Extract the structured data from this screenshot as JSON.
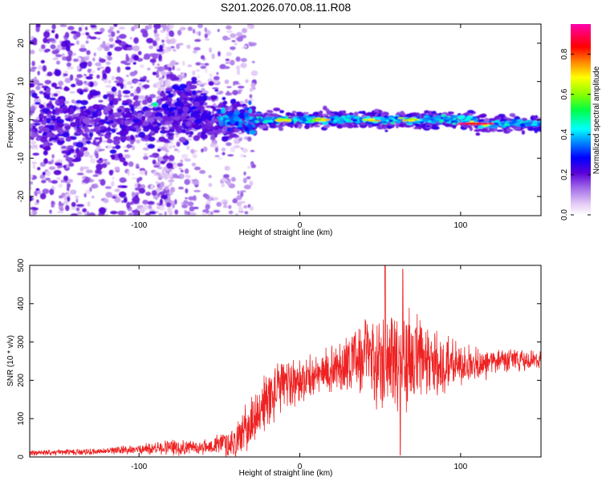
{
  "title": "S201.2026.070.08.11.R08",
  "colors": {
    "snr_line": "#ee2222",
    "frame": "#000000"
  },
  "chart_data": [
    {
      "type": "heatmap",
      "xlabel": "Height of straight line (km)",
      "ylabel": "Frequency (Hz)",
      "xlim": [
        -168,
        150
      ],
      "ylim": [
        -25,
        25
      ],
      "xticks": [
        -100,
        0,
        100
      ],
      "yticks": [
        -20,
        -10,
        0,
        10,
        20
      ],
      "colorbar": {
        "label": "Normalized spectral amplitude",
        "range": [
          0.0,
          0.95
        ],
        "ticks": [
          0.0,
          0.2,
          0.4,
          0.6,
          0.8
        ],
        "colormap": "rainbow-white-to-magenta"
      },
      "ridge": {
        "x_start": -30,
        "x_end": 150,
        "frequency_hz": 0,
        "peak_amplitude": 0.95,
        "peaks_near_x": [
          -10,
          12,
          45,
          70,
          110
        ]
      }
    },
    {
      "type": "line",
      "xlabel": "Height of straight line (km)",
      "ylabel": "SNR (10 * v/v)",
      "xlim": [
        -168,
        150
      ],
      "ylim": [
        0,
        500
      ],
      "xticks": [
        -100,
        0,
        100
      ],
      "yticks": [
        0,
        100,
        200,
        300,
        400,
        500
      ],
      "series": [
        {
          "name": "SNR",
          "color": "#ee2222",
          "envelope_x": [
            -168,
            -120,
            -100,
            -80,
            -60,
            -40,
            -30,
            -20,
            -10,
            0,
            10,
            20,
            30,
            40,
            50,
            60,
            70,
            80,
            90,
            100,
            110,
            120,
            130,
            150
          ],
          "envelope_mean": [
            10,
            15,
            20,
            25,
            25,
            40,
            90,
            150,
            190,
            200,
            210,
            230,
            250,
            260,
            260,
            260,
            250,
            240,
            240,
            240,
            240,
            245,
            250,
            255
          ],
          "envelope_spread": [
            8,
            10,
            15,
            25,
            20,
            50,
            80,
            90,
            80,
            70,
            60,
            70,
            90,
            120,
            150,
            160,
            150,
            120,
            100,
            70,
            50,
            40,
            35,
            30
          ],
          "peak_max": 510,
          "peak_near_x": 53
        }
      ]
    }
  ]
}
